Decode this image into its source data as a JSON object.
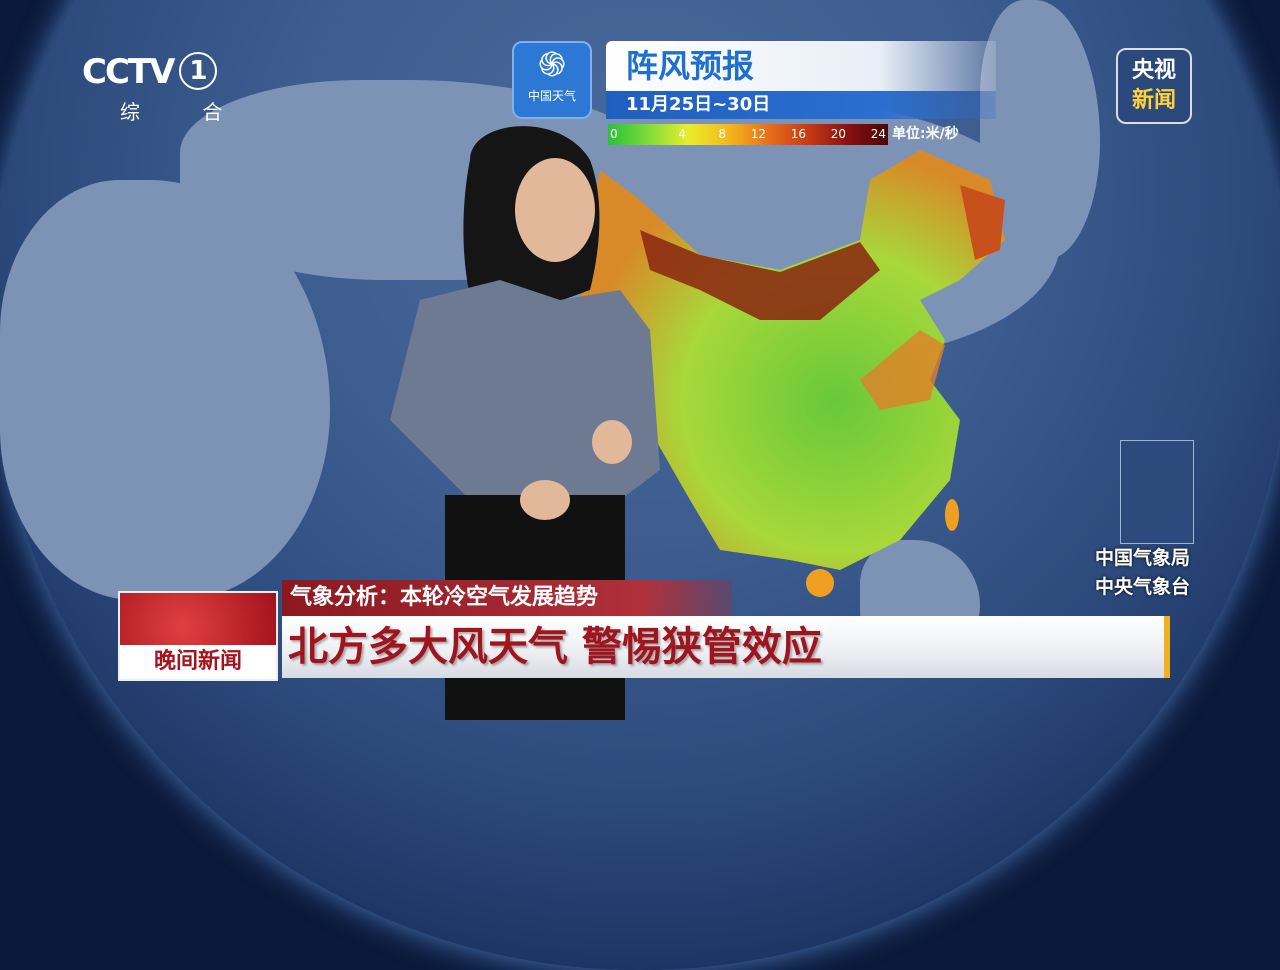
{
  "channel": {
    "logo": "CCTV",
    "number": "1",
    "name": "综 合"
  },
  "corner_logo": {
    "line1": "央视",
    "line2": "新闻"
  },
  "weather_logo": {
    "label": "中国天气",
    "icon": "swirl-icon"
  },
  "forecast": {
    "title": "阵风预报",
    "date_range": "11月25日~30日"
  },
  "legend": {
    "ticks": [
      "0",
      "4",
      "8",
      "12",
      "16",
      "20",
      "24"
    ],
    "unit": "单位:米/秒",
    "colors": [
      "#28c23a",
      "#7edb3a",
      "#e8ee2a",
      "#f6b81c",
      "#e8701a",
      "#c83a12",
      "#8a1010",
      "#4a0606"
    ]
  },
  "source": {
    "line1": "中国气象局",
    "line2": "中央气象台"
  },
  "program": {
    "name": "晚间新闻"
  },
  "lower_third": {
    "subtitle": "气象分析：本轮冷空气发展趋势",
    "headline": "北方多大风天气 警惕狭管效应"
  }
}
